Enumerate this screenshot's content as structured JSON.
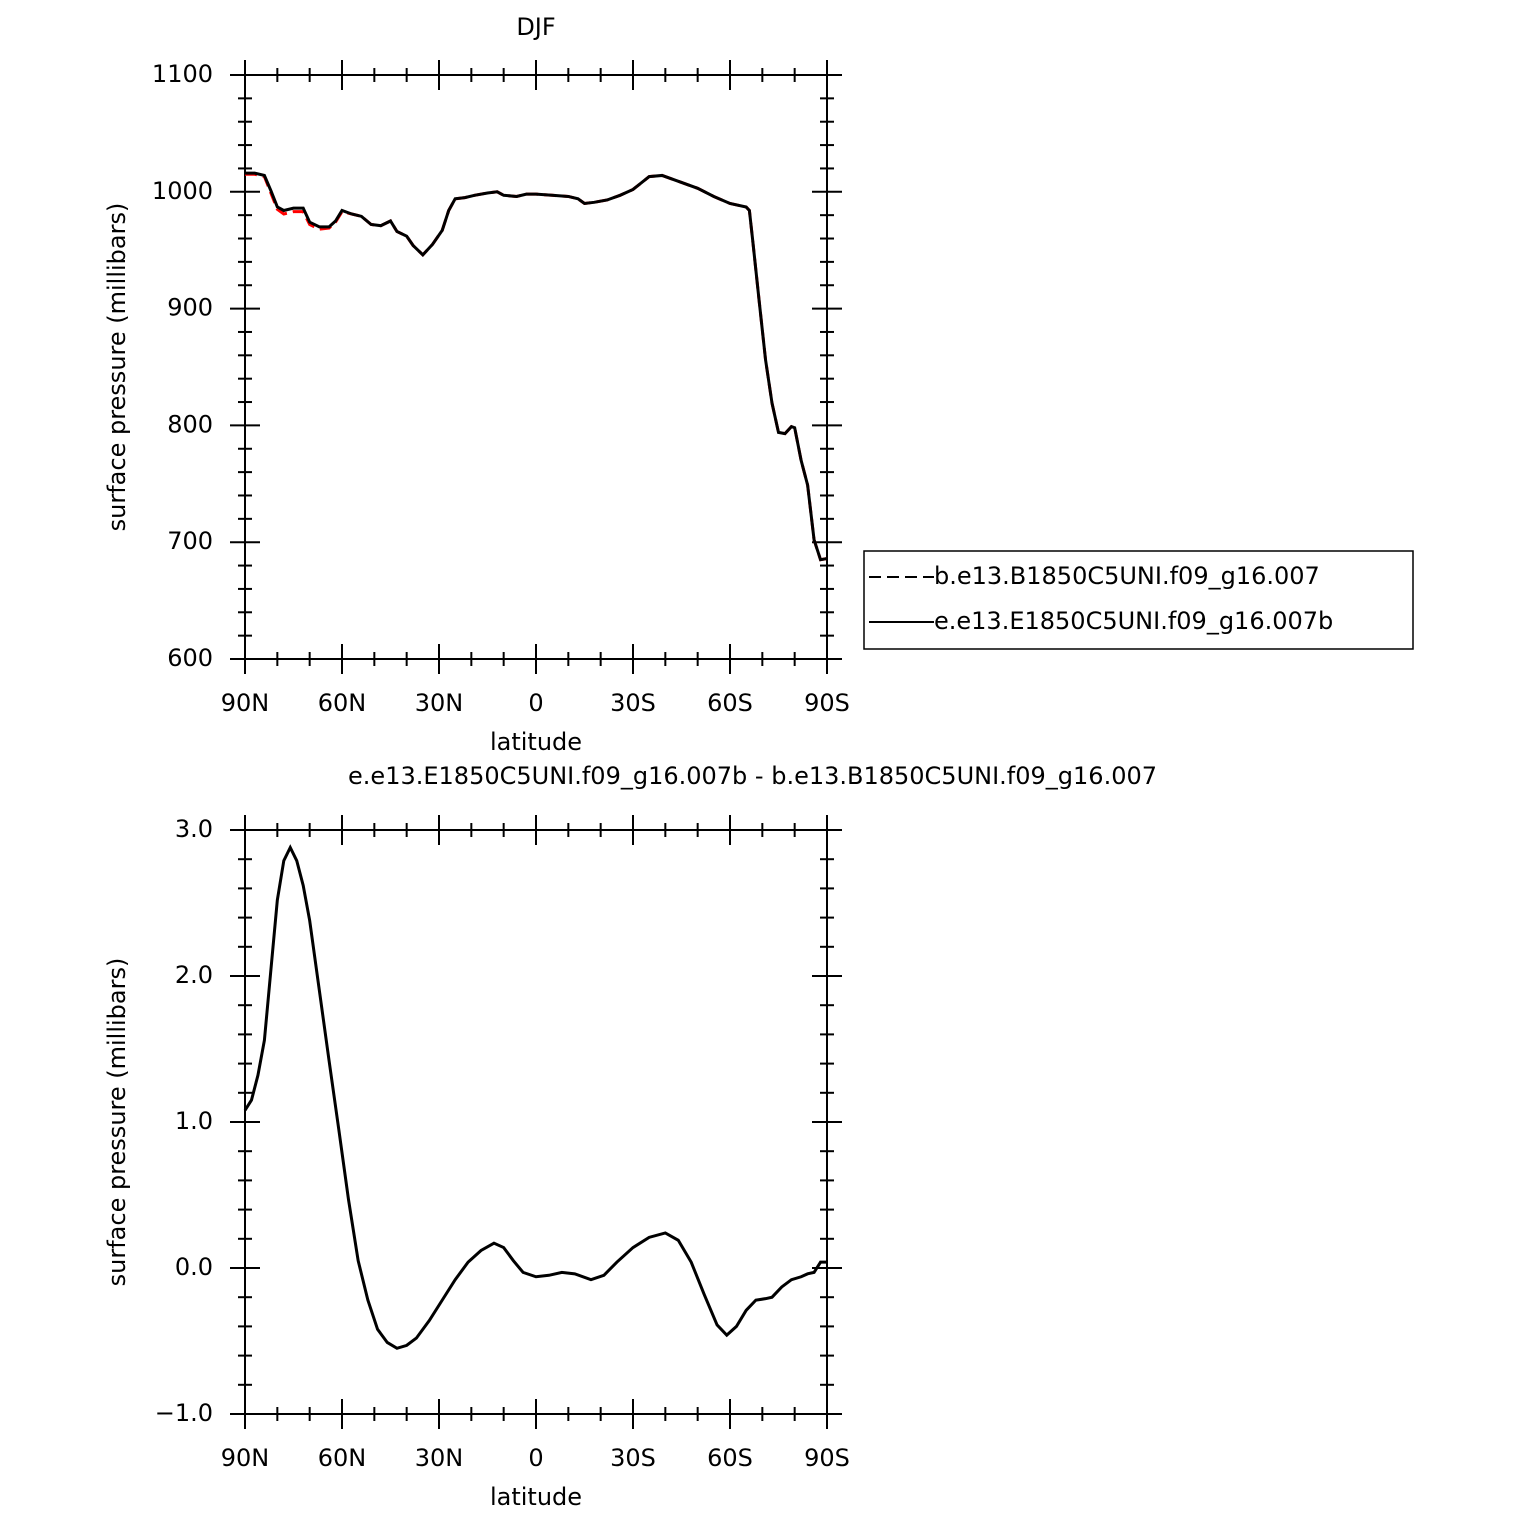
{
  "chart_data": [
    {
      "type": "line",
      "title": "DJF",
      "xlabel": "latitude",
      "ylabel": "surface pressure (millibars)",
      "x": [
        90,
        87,
        84,
        82,
        80,
        78,
        75,
        72,
        70,
        67,
        64,
        62,
        60,
        57,
        54,
        51,
        48,
        45,
        43,
        40,
        38,
        35,
        32,
        29,
        27,
        25,
        22,
        19,
        15,
        12,
        10,
        6,
        3,
        0,
        -5,
        -10,
        -13,
        -15,
        -18,
        -22,
        -26,
        -30,
        -35,
        -39,
        -45,
        -50,
        -55,
        -60,
        -65,
        -66,
        -67,
        -69,
        -71,
        -73,
        -75,
        -77,
        -79,
        -80,
        -82,
        -84,
        -86,
        -88,
        -90
      ],
      "series": [
        {
          "name": "b.e13.B1850C5UNI.f09_g16.007",
          "color": "#ff0000",
          "linestyle": "dashed",
          "values": [
            1015,
            1015,
            1013,
            999,
            985,
            981,
            983,
            983,
            972,
            968,
            969,
            974,
            983,
            981,
            979,
            972,
            971,
            975,
            966,
            962,
            954,
            946,
            955,
            967,
            984,
            994,
            995,
            997,
            999,
            1000,
            997,
            996,
            998,
            998,
            997,
            996,
            994,
            990,
            991,
            993,
            997,
            1002,
            1013,
            1014,
            1008,
            1003,
            996,
            990,
            987,
            984,
            959,
            907,
            856,
            819,
            794,
            793,
            799,
            798,
            770,
            749,
            702,
            685,
            686
          ]
        },
        {
          "name": "e.e13.E1850C5UNI.f09_g16.007b",
          "color": "#000000",
          "linestyle": "solid",
          "values": [
            1016,
            1016,
            1014,
            1001,
            987,
            984,
            986,
            986,
            974,
            970,
            970,
            975,
            984,
            981,
            979,
            972,
            971,
            975,
            966,
            962,
            954,
            946,
            955,
            967,
            984,
            994,
            995,
            997,
            999,
            1000,
            997,
            996,
            998,
            998,
            997,
            996,
            994,
            990,
            991,
            993,
            997,
            1002,
            1013,
            1014,
            1008,
            1003,
            996,
            990,
            987,
            984,
            959,
            907,
            856,
            819,
            794,
            793,
            799,
            798,
            770,
            749,
            702,
            685,
            686
          ]
        }
      ],
      "xlim": [
        90,
        -90
      ],
      "ylim": [
        600,
        1100
      ],
      "xticks": [
        {
          "value": 90,
          "label": "90N"
        },
        {
          "value": 60,
          "label": "60N"
        },
        {
          "value": 30,
          "label": "30N"
        },
        0,
        {
          "value": -30,
          "label": "30S"
        },
        {
          "value": -60,
          "label": "60S"
        },
        {
          "value": -90,
          "label": "90S"
        }
      ],
      "yticks": [
        600,
        700,
        800,
        900,
        1000,
        1100
      ],
      "legend": "right"
    },
    {
      "type": "line",
      "title": "e.e13.E1850C5UNI.f09_g16.007b - b.e13.B1850C5UNI.f09_g16.007",
      "xlabel": "latitude",
      "ylabel": "surface pressure (millibars)",
      "x": [
        90,
        88,
        86,
        84,
        82,
        80,
        78,
        76,
        74,
        72,
        70,
        67,
        64,
        61,
        58,
        55,
        52,
        49,
        46,
        43,
        40,
        37,
        33,
        29,
        25,
        21,
        17,
        13,
        10,
        7,
        4,
        0,
        -4,
        -8,
        -12,
        -17,
        -21,
        -25,
        -30,
        -35,
        -40,
        -44,
        -48,
        -52,
        -56,
        -59,
        -62,
        -65,
        -68,
        -71,
        -73,
        -76,
        -79,
        -82,
        -84,
        -86,
        -88,
        -90
      ],
      "series": [
        {
          "color": "#000000",
          "linestyle": "solid",
          "values": [
            1.08,
            1.15,
            1.32,
            1.56,
            2.04,
            2.52,
            2.79,
            2.88,
            2.79,
            2.62,
            2.38,
            1.9,
            1.42,
            0.95,
            0.47,
            0.05,
            -0.22,
            -0.42,
            -0.51,
            -0.55,
            -0.53,
            -0.48,
            -0.36,
            -0.22,
            -0.08,
            0.04,
            0.12,
            0.17,
            0.14,
            0.05,
            -0.03,
            -0.06,
            -0.05,
            -0.03,
            -0.04,
            -0.08,
            -0.05,
            0.04,
            0.14,
            0.21,
            0.24,
            0.19,
            0.04,
            -0.18,
            -0.39,
            -0.46,
            -0.4,
            -0.29,
            -0.22,
            -0.21,
            -0.2,
            -0.13,
            -0.08,
            -0.06,
            -0.04,
            -0.03,
            0.04,
            0.04
          ]
        }
      ],
      "xlim": [
        90,
        -90
      ],
      "ylim": [
        -1,
        3
      ],
      "xticks": [
        {
          "value": 90,
          "label": "90N"
        },
        {
          "value": 60,
          "label": "60N"
        },
        {
          "value": 30,
          "label": "30N"
        },
        0,
        {
          "value": -30,
          "label": "30S"
        },
        {
          "value": -60,
          "label": "60S"
        },
        {
          "value": -90,
          "label": "90S"
        }
      ],
      "yticks": [
        {
          "value": -1,
          "label": "−1.0"
        },
        {
          "value": 0,
          "label": "0.0"
        },
        {
          "value": 1,
          "label": "1.0"
        },
        {
          "value": 2,
          "label": "2.0"
        },
        {
          "value": 3,
          "label": "3.0"
        }
      ]
    }
  ]
}
